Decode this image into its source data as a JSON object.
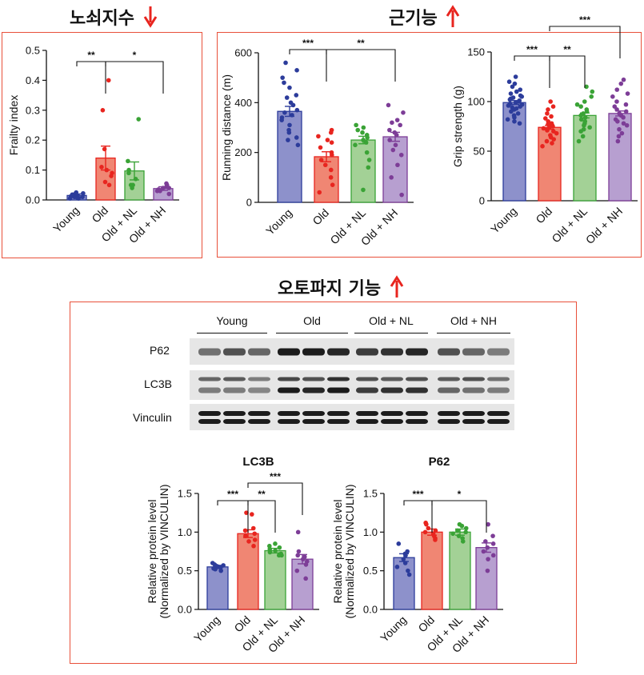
{
  "section_titles": {
    "frailty": "노쇠지수",
    "muscle": "근기능",
    "autophagy": "오토파지 기능"
  },
  "arrow_color": "#e8251f",
  "box_color": "#e8503a",
  "groups": [
    "Young",
    "Old",
    "Old + NL",
    "Old + NH"
  ],
  "group_colors": {
    "bar": [
      "#8d91cb",
      "#f08673",
      "#a3d196",
      "#b79fd0"
    ],
    "dot": [
      "#2c3c9b",
      "#e8251f",
      "#3aa336",
      "#7d3d97"
    ]
  },
  "western_blot": {
    "groups": [
      "Young",
      "Old",
      "Old + NL",
      "Old + NH"
    ],
    "rows": [
      "P62",
      "LC3B",
      "Vinculin"
    ]
  },
  "chart_data": [
    {
      "type": "bar",
      "id": "frailty",
      "title": "",
      "categories": [
        "Young",
        "Old",
        "Old + NL",
        "Old + NH"
      ],
      "values": [
        0.015,
        0.14,
        0.097,
        0.038
      ],
      "errors": [
        0.005,
        0.04,
        0.03,
        0.006
      ],
      "ylabel": "Frailty index",
      "ylim": [
        0,
        0.5
      ],
      "yticks": [
        "0.0",
        "0.1",
        "0.2",
        "0.3",
        "0.4",
        "0.5"
      ],
      "points": [
        [
          0.005,
          0.01,
          0.012,
          0.015,
          0.02,
          0.025,
          0.005,
          0.018,
          0.01,
          0.008,
          0.022
        ],
        [
          0.4,
          0.3,
          0.17,
          0.11,
          0.1,
          0.09,
          0.08,
          0.06,
          0.05
        ],
        [
          0.27,
          0.13,
          0.1,
          0.09,
          0.07,
          0.05,
          0.05,
          0.04
        ],
        [
          0.055,
          0.05,
          0.045,
          0.04,
          0.035,
          0.03,
          0.04,
          0.03,
          0.02
        ]
      ],
      "significance": [
        {
          "from": 0,
          "to": 1,
          "label": "**"
        },
        {
          "from": 1,
          "to": 3,
          "label": "*"
        }
      ]
    },
    {
      "type": "bar",
      "id": "running",
      "title": "",
      "categories": [
        "Young",
        "Old",
        "Old + NL",
        "Old + NH"
      ],
      "values": [
        365,
        183,
        250,
        263
      ],
      "errors": [
        20,
        20,
        15,
        18
      ],
      "ylabel": "Running distance (m)",
      "ylim": [
        0,
        600
      ],
      "yticks": [
        "0",
        "200",
        "400",
        "600"
      ],
      "points": [
        [
          560,
          530,
          500,
          480,
          460,
          430,
          420,
          400,
          390,
          370,
          360,
          350,
          340,
          330,
          310,
          290,
          280,
          260,
          250,
          230
        ],
        [
          290,
          280,
          265,
          250,
          240,
          220,
          200,
          190,
          170,
          150,
          130,
          100,
          70,
          40
        ],
        [
          310,
          300,
          290,
          280,
          270,
          260,
          250,
          240,
          230,
          200,
          170,
          140,
          50
        ],
        [
          390,
          360,
          330,
          320,
          310,
          290,
          280,
          270,
          250,
          230,
          210,
          190,
          150,
          100,
          30
        ]
      ],
      "significance": [
        {
          "from": 0,
          "to": 1,
          "label": "***"
        },
        {
          "from": 1,
          "to": 3,
          "label": "**"
        }
      ]
    },
    {
      "type": "bar",
      "id": "grip",
      "title": "",
      "categories": [
        "Young",
        "Old",
        "Old + NL",
        "Old + NH"
      ],
      "values": [
        99,
        74,
        86,
        88
      ],
      "errors": [
        2,
        2,
        2.5,
        2.5
      ],
      "ylabel": "Grip strength (g)",
      "ylim": [
        0,
        150
      ],
      "yticks": [
        "0",
        "50",
        "100",
        "150"
      ],
      "points": [
        [
          125,
          120,
          118,
          115,
          112,
          110,
          108,
          106,
          105,
          104,
          103,
          102,
          101,
          100,
          99,
          98,
          97,
          96,
          95,
          94,
          93,
          92,
          90,
          88,
          86,
          84,
          82,
          80,
          78
        ],
        [
          100,
          95,
          92,
          88,
          85,
          83,
          80,
          78,
          77,
          76,
          75,
          74,
          73,
          72,
          71,
          70,
          68,
          66,
          64,
          62,
          60,
          58,
          55
        ],
        [
          115,
          110,
          105,
          100,
          97,
          95,
          92,
          90,
          88,
          86,
          84,
          82,
          80,
          78,
          76,
          74,
          72,
          70,
          65,
          60
        ],
        [
          122,
          118,
          112,
          108,
          105,
          100,
          97,
          95,
          92,
          90,
          88,
          86,
          84,
          82,
          80,
          78,
          76,
          72,
          68,
          65,
          60
        ]
      ],
      "significance": [
        {
          "from": 0,
          "to": 1,
          "label": "***"
        },
        {
          "from": 1,
          "to": 2,
          "label": "**"
        },
        {
          "from": 1,
          "to": 3,
          "label": "***",
          "level": 2
        }
      ]
    },
    {
      "type": "bar",
      "id": "lc3b",
      "title": "LC3B",
      "categories": [
        "Young",
        "Old",
        "Old + NL",
        "Old + NH"
      ],
      "values": [
        0.55,
        0.98,
        0.76,
        0.65
      ],
      "errors": [
        0.02,
        0.05,
        0.03,
        0.06
      ],
      "ylabel": "Relative protein level",
      "ylabel2": "(Normalized by VINCULIN)",
      "ylim": [
        0,
        1.5
      ],
      "yticks": [
        "0.0",
        "0.5",
        "1.0",
        "1.5"
      ],
      "points": [
        [
          0.6,
          0.58,
          0.57,
          0.56,
          0.55,
          0.54,
          0.53,
          0.52,
          0.5
        ],
        [
          1.25,
          1.23,
          1.05,
          1.02,
          0.98,
          0.95,
          0.9,
          0.88,
          0.82
        ],
        [
          0.85,
          0.82,
          0.8,
          0.78,
          0.76,
          0.74,
          0.72,
          0.7,
          0.7
        ],
        [
          1.0,
          0.75,
          0.7,
          0.68,
          0.65,
          0.62,
          0.58,
          0.5,
          0.4
        ]
      ],
      "significance": [
        {
          "from": 0,
          "to": 1,
          "label": "***"
        },
        {
          "from": 1,
          "to": 2,
          "label": "**"
        },
        {
          "from": 1,
          "to": 3,
          "label": "***",
          "level": 2
        }
      ]
    },
    {
      "type": "bar",
      "id": "p62",
      "title": "P62",
      "categories": [
        "Young",
        "Old",
        "Old + NL",
        "Old + NH"
      ],
      "values": [
        0.67,
        1.0,
        1.0,
        0.8
      ],
      "errors": [
        0.05,
        0.04,
        0.04,
        0.06
      ],
      "ylabel": "Relative protein level",
      "ylabel2": "(Normalized by VINCULIN)",
      "ylim": [
        0,
        1.5
      ],
      "yticks": [
        "0.0",
        "0.5",
        "1.0",
        "1.5"
      ],
      "points": [
        [
          0.85,
          0.75,
          0.72,
          0.7,
          0.65,
          0.6,
          0.55,
          0.5,
          0.45
        ],
        [
          1.12,
          1.1,
          1.05,
          1.02,
          1.0,
          0.98,
          0.95,
          0.92,
          0.9
        ],
        [
          1.1,
          1.08,
          1.05,
          1.02,
          1.0,
          0.98,
          0.95,
          0.92,
          0.88
        ],
        [
          1.1,
          0.95,
          0.88,
          0.85,
          0.8,
          0.75,
          0.7,
          0.65,
          0.5
        ]
      ],
      "significance": [
        {
          "from": 0,
          "to": 1,
          "label": "***"
        },
        {
          "from": 1,
          "to": 3,
          "label": "*"
        }
      ]
    }
  ]
}
